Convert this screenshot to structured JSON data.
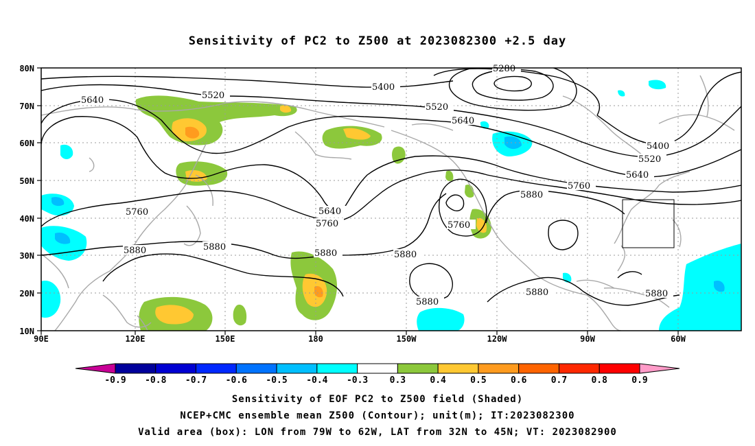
{
  "title": "Sensitivity of PC2 to Z500 at 2023082300 +2.5 day",
  "lat_labels": [
    "80N",
    "70N",
    "60N",
    "50N",
    "40N",
    "30N",
    "20N",
    "10N"
  ],
  "lon_labels": [
    "90E",
    "120E",
    "150E",
    "180",
    "150W",
    "120W",
    "90W",
    "60W"
  ],
  "contour_labels": {
    "c5280": "5280",
    "c5400a": "5400",
    "c5400b": "5400",
    "c5520a": "5520",
    "c5520b": "5520",
    "c5520c": "5520",
    "c5640a": "5640",
    "c5640b": "5640",
    "c5640c": "5640",
    "c5640d": "5640",
    "c5760a": "5760",
    "c5760b": "5760",
    "c5760c": "5760",
    "c5760d": "5760",
    "c5880a": "5880",
    "c5880b": "5880",
    "c5880c": "5880",
    "c5880d": "5880",
    "c5880e": "5880",
    "c5880f": "5880",
    "c5880g": "5880",
    "c5880h": "5880"
  },
  "colorbar": {
    "labels": [
      "-0.9",
      "-0.8",
      "-0.7",
      "-0.6",
      "-0.5",
      "-0.4",
      "-0.3",
      "0.3",
      "0.4",
      "0.5",
      "0.6",
      "0.7",
      "0.8",
      "0.9"
    ],
    "colors": [
      "#c80096",
      "#00009b",
      "#0000d2",
      "#0028ff",
      "#0073ff",
      "#00bfff",
      "#00ffff",
      "#ffffff",
      "#8cc83c",
      "#ffc832",
      "#ff9b1e",
      "#ff6400",
      "#ff2800",
      "#ff0000",
      "#ff9bc8"
    ]
  },
  "captions": {
    "line1": "Sensitivity of EOF PC2 to Z500 field (Shaded)",
    "line2": "NCEP+CMC ensemble mean Z500 (Contour); unit(m); IT:2023082300",
    "line3": "Valid area (box): LON from 79W to 62W, LAT from 32N to 45N; VT: 2023082900"
  }
}
